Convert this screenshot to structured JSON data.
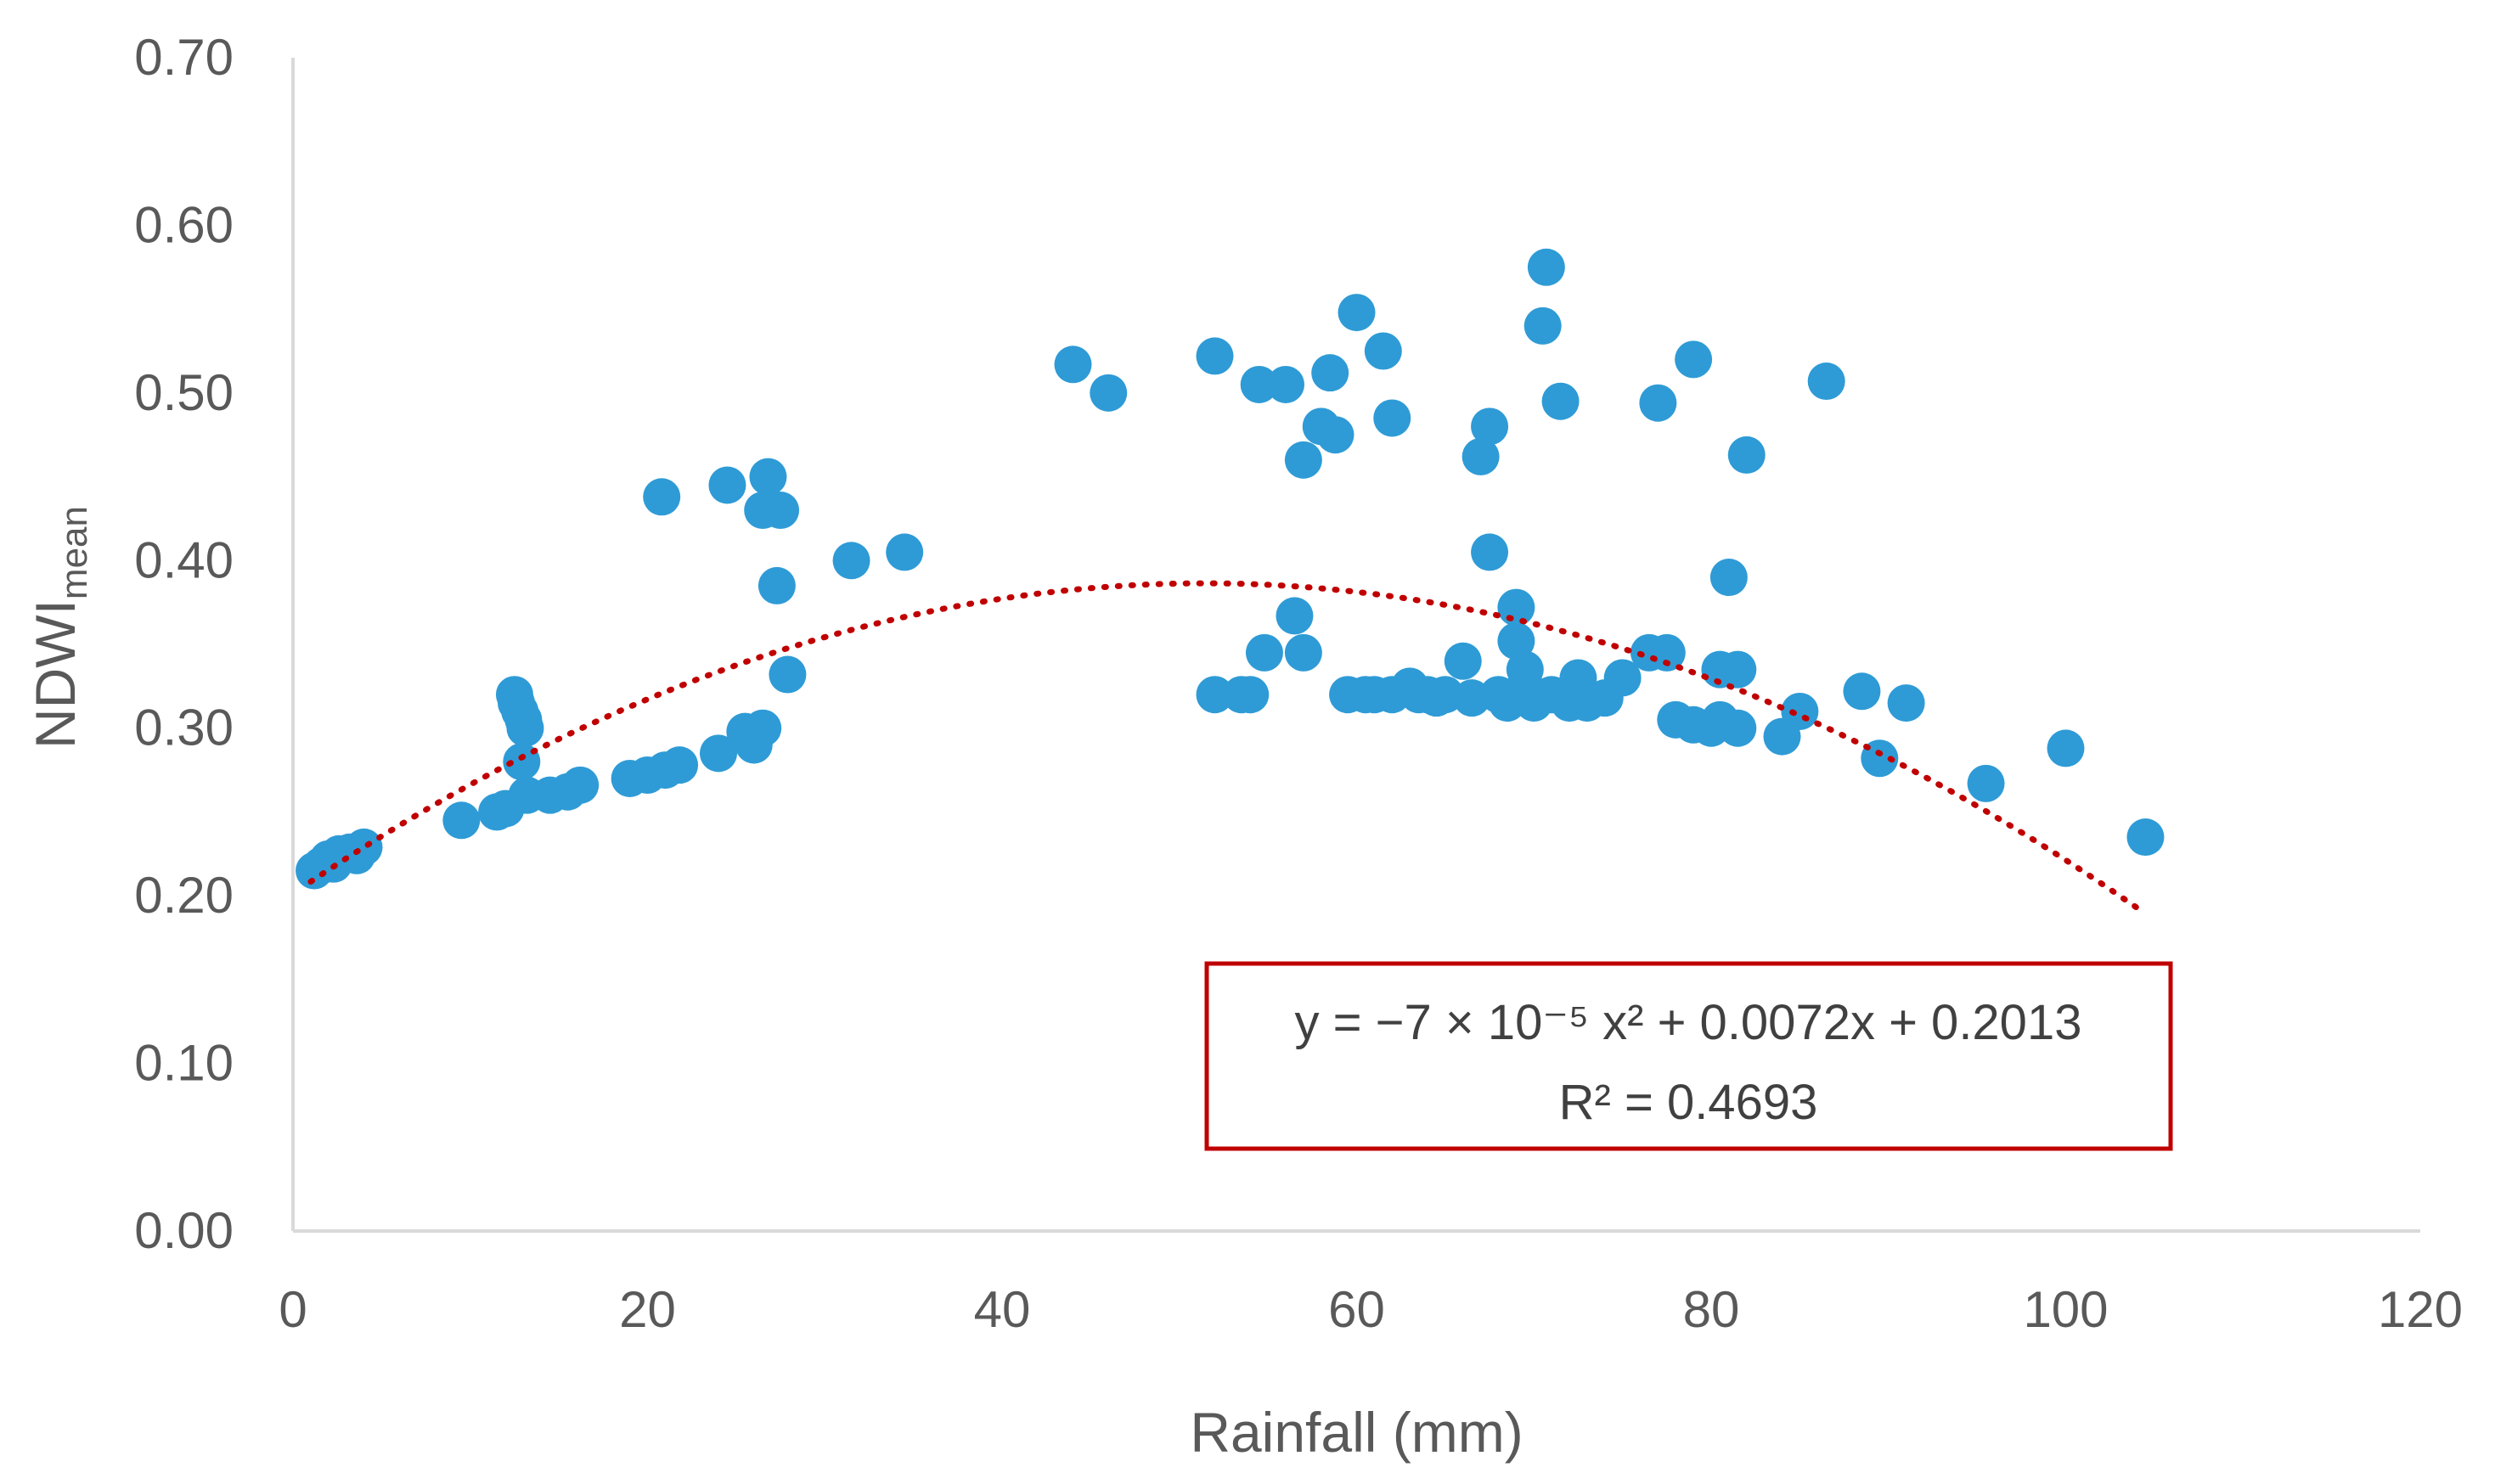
{
  "chart_data": {
    "type": "scatter",
    "title": "",
    "xlabel": "Rainfall (mm)",
    "ylabel_main": "NDWI",
    "ylabel_sub": "mean",
    "xlim": [
      0,
      120
    ],
    "ylim": [
      0,
      0.7
    ],
    "x_ticks": [
      0,
      20,
      40,
      60,
      80,
      100,
      120
    ],
    "x_tick_labels": [
      "0",
      "20",
      "40",
      "60",
      "80",
      "100",
      "120"
    ],
    "y_ticks": [
      0,
      0.1,
      0.2,
      0.3,
      0.4,
      0.5,
      0.6,
      0.7
    ],
    "y_tick_labels": [
      "0.00",
      "0.10",
      "0.20",
      "0.30",
      "0.40",
      "0.50",
      "0.60",
      "0.70"
    ],
    "grid": false,
    "legend": "none",
    "colors": {
      "points": "#2e9bd6",
      "trendline": "#c00000",
      "box": "#c00000",
      "axis": "#d9d9d9",
      "text": "#595959"
    },
    "trendline": {
      "type": "polynomial",
      "a": -7e-05,
      "b": 0.0072,
      "c": 0.2013,
      "x_range": [
        1,
        104.5
      ],
      "equation_text": "y = −7 × 10⁻⁵ x² + 0.0072x + 0.2013",
      "r2_text": "R² = 0.4693"
    },
    "series": [
      {
        "name": "NDWI mean",
        "points": [
          [
            1.2,
            0.215
          ],
          [
            1.6,
            0.218
          ],
          [
            2.0,
            0.222
          ],
          [
            2.6,
            0.225
          ],
          [
            3.2,
            0.226
          ],
          [
            3.6,
            0.224
          ],
          [
            4.0,
            0.229
          ],
          [
            2.3,
            0.219
          ],
          [
            9.5,
            0.245
          ],
          [
            11.5,
            0.25
          ],
          [
            12.0,
            0.252
          ],
          [
            12.5,
            0.32
          ],
          [
            12.6,
            0.315
          ],
          [
            12.8,
            0.31
          ],
          [
            13.0,
            0.305
          ],
          [
            13.1,
            0.3
          ],
          [
            12.9,
            0.28
          ],
          [
            13.2,
            0.26
          ],
          [
            14.5,
            0.26
          ],
          [
            15.5,
            0.262
          ],
          [
            16.2,
            0.266
          ],
          [
            19.0,
            0.27
          ],
          [
            20.0,
            0.272
          ],
          [
            21.0,
            0.275
          ],
          [
            21.8,
            0.278
          ],
          [
            20.8,
            0.438
          ],
          [
            24.0,
            0.285
          ],
          [
            24.5,
            0.445
          ],
          [
            25.5,
            0.298
          ],
          [
            26.0,
            0.29
          ],
          [
            26.5,
            0.3
          ],
          [
            26.8,
            0.45
          ],
          [
            26.5,
            0.43
          ],
          [
            27.5,
            0.43
          ],
          [
            27.3,
            0.385
          ],
          [
            27.9,
            0.332
          ],
          [
            31.5,
            0.4
          ],
          [
            34.5,
            0.405
          ],
          [
            44.0,
            0.517
          ],
          [
            46.0,
            0.5
          ],
          [
            52.0,
            0.522
          ],
          [
            52.0,
            0.32
          ],
          [
            53.5,
            0.32
          ],
          [
            54.0,
            0.32
          ],
          [
            54.5,
            0.505
          ],
          [
            54.8,
            0.345
          ],
          [
            56.0,
            0.505
          ],
          [
            56.5,
            0.367
          ],
          [
            57.0,
            0.46
          ],
          [
            57.0,
            0.345
          ],
          [
            58.0,
            0.48
          ],
          [
            58.5,
            0.512
          ],
          [
            58.8,
            0.475
          ],
          [
            59.5,
            0.32
          ],
          [
            60.0,
            0.548
          ],
          [
            60.5,
            0.32
          ],
          [
            61.0,
            0.32
          ],
          [
            61.5,
            0.525
          ],
          [
            62.0,
            0.485
          ],
          [
            62.0,
            0.32
          ],
          [
            63.0,
            0.325
          ],
          [
            63.5,
            0.32
          ],
          [
            64.0,
            0.32
          ],
          [
            64.5,
            0.318
          ],
          [
            65.0,
            0.32
          ],
          [
            66.0,
            0.34
          ],
          [
            66.5,
            0.318
          ],
          [
            67.0,
            0.462
          ],
          [
            67.5,
            0.48
          ],
          [
            67.5,
            0.405
          ],
          [
            68.0,
            0.32
          ],
          [
            68.5,
            0.315
          ],
          [
            69.0,
            0.372
          ],
          [
            69.0,
            0.352
          ],
          [
            69.5,
            0.335
          ],
          [
            69.5,
            0.325
          ],
          [
            70.0,
            0.315
          ],
          [
            70.5,
            0.54
          ],
          [
            70.7,
            0.575
          ],
          [
            71.0,
            0.32
          ],
          [
            71.5,
            0.495
          ],
          [
            72.0,
            0.315
          ],
          [
            72.5,
            0.33
          ],
          [
            73.0,
            0.315
          ],
          [
            74.0,
            0.318
          ],
          [
            75.0,
            0.33
          ],
          [
            76.5,
            0.345
          ],
          [
            77.0,
            0.494
          ],
          [
            77.5,
            0.345
          ],
          [
            78.0,
            0.305
          ],
          [
            79.0,
            0.302
          ],
          [
            79.0,
            0.52
          ],
          [
            80.0,
            0.3
          ],
          [
            80.5,
            0.335
          ],
          [
            80.5,
            0.305
          ],
          [
            81.0,
            0.39
          ],
          [
            81.5,
            0.335
          ],
          [
            82.0,
            0.463
          ],
          [
            81.5,
            0.3
          ],
          [
            84.0,
            0.295
          ],
          [
            85.0,
            0.31
          ],
          [
            86.5,
            0.507
          ],
          [
            88.5,
            0.322
          ],
          [
            89.5,
            0.282
          ],
          [
            91.0,
            0.315
          ],
          [
            95.5,
            0.267
          ],
          [
            100.0,
            0.288
          ],
          [
            104.5,
            0.235
          ]
        ]
      }
    ]
  }
}
